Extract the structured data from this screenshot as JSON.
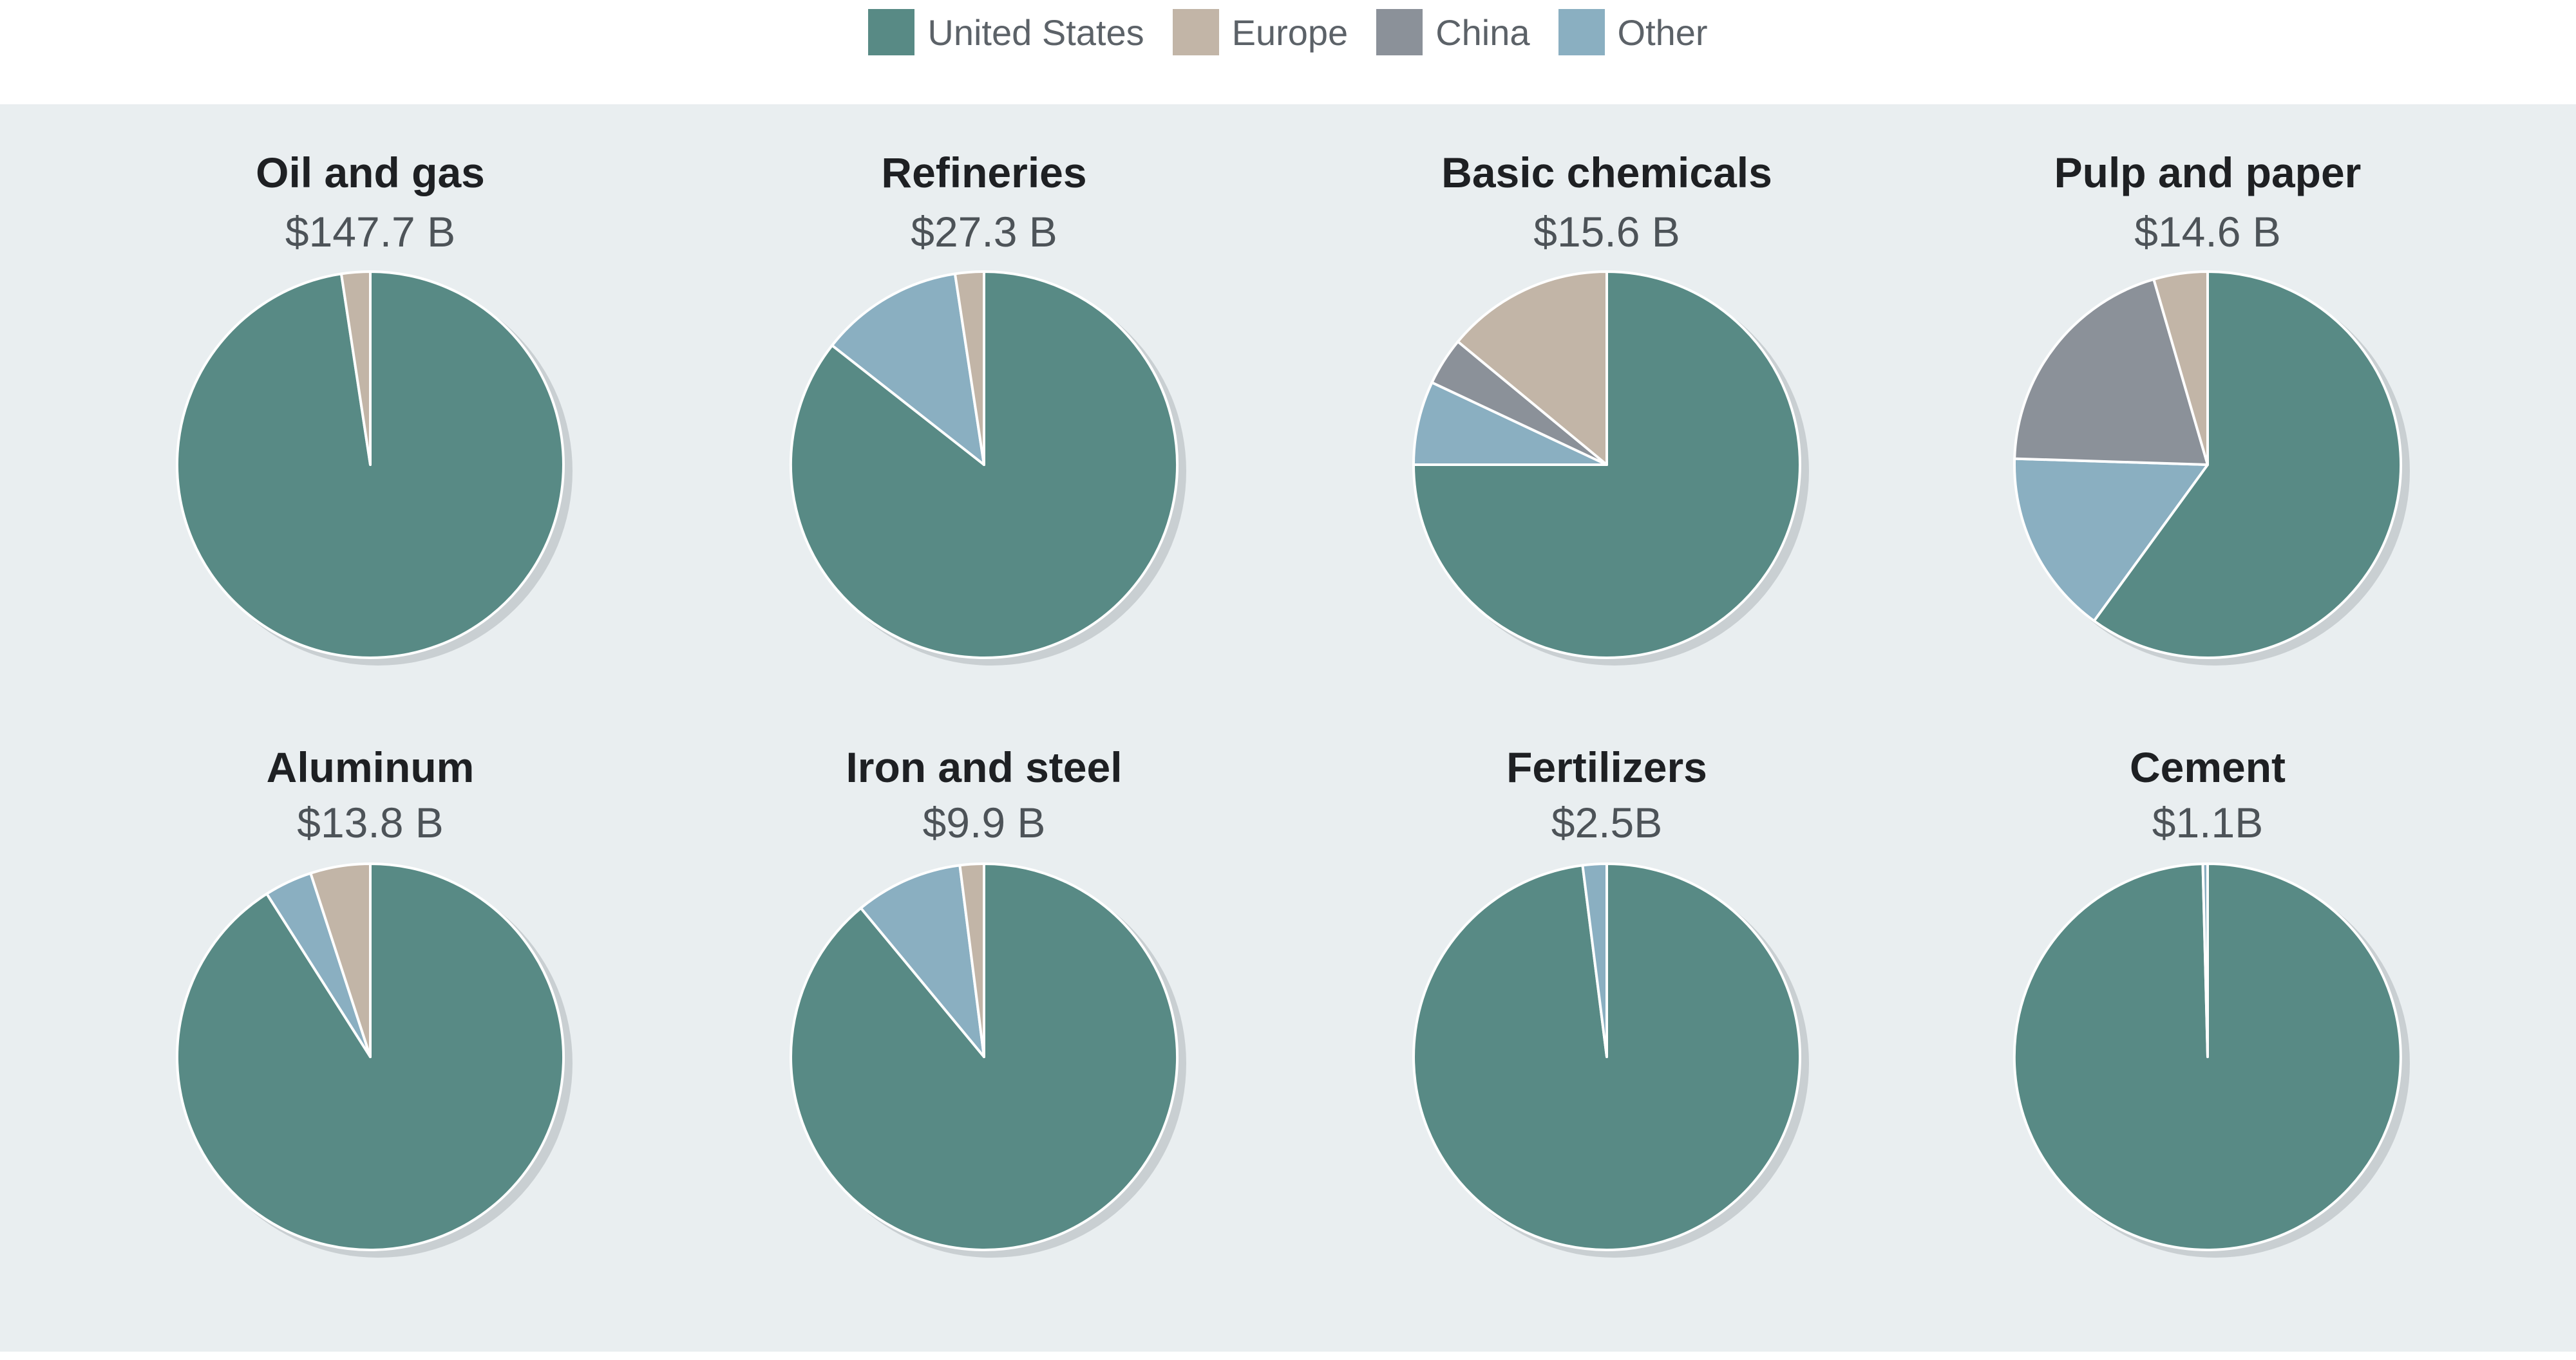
{
  "colors": {
    "united_states": "#588a85",
    "europe": "#c2b5a7",
    "china": "#8b9199",
    "other": "#8aafc1",
    "shadow": "#c9cfd2",
    "panel": "#e9eef0"
  },
  "legend": [
    {
      "label": "United States",
      "color": "#588a85"
    },
    {
      "label": "Europe",
      "color": "#c2b5a7"
    },
    {
      "label": "China",
      "color": "#8b9199"
    },
    {
      "label": "Other",
      "color": "#8aafc1"
    }
  ],
  "chart_data": {
    "type": "pie",
    "series_order": [
      "United States",
      "Europe",
      "China",
      "Other"
    ],
    "pies": [
      {
        "title": "Oil and gas",
        "value_label": "$147.7 B",
        "values": [
          97.6,
          2.4,
          0,
          0
        ]
      },
      {
        "title": "Refineries",
        "value_label": "$27.3 B",
        "values": [
          85.6,
          2.4,
          0,
          12.0
        ]
      },
      {
        "title": "Basic chemicals",
        "value_label": "$15.6 B",
        "values": [
          75.0,
          14.0,
          4.0,
          7.0
        ]
      },
      {
        "title": "Pulp and paper",
        "value_label": "$14.6 B",
        "values": [
          60.0,
          4.5,
          20.0,
          15.5
        ]
      },
      {
        "title": "Aluminum",
        "value_label": "$13.8 B",
        "values": [
          91.0,
          5.0,
          0,
          4.0
        ]
      },
      {
        "title": "Iron and steel",
        "value_label": "$9.9 B",
        "values": [
          89.0,
          2.0,
          0,
          9.0
        ]
      },
      {
        "title": "Fertilizers",
        "value_label": "$2.5B",
        "values": [
          98.0,
          0,
          0,
          2.0
        ]
      },
      {
        "title": "Cement",
        "value_label": "$1.1B",
        "values": [
          99.6,
          0,
          0,
          0.4
        ]
      }
    ]
  }
}
